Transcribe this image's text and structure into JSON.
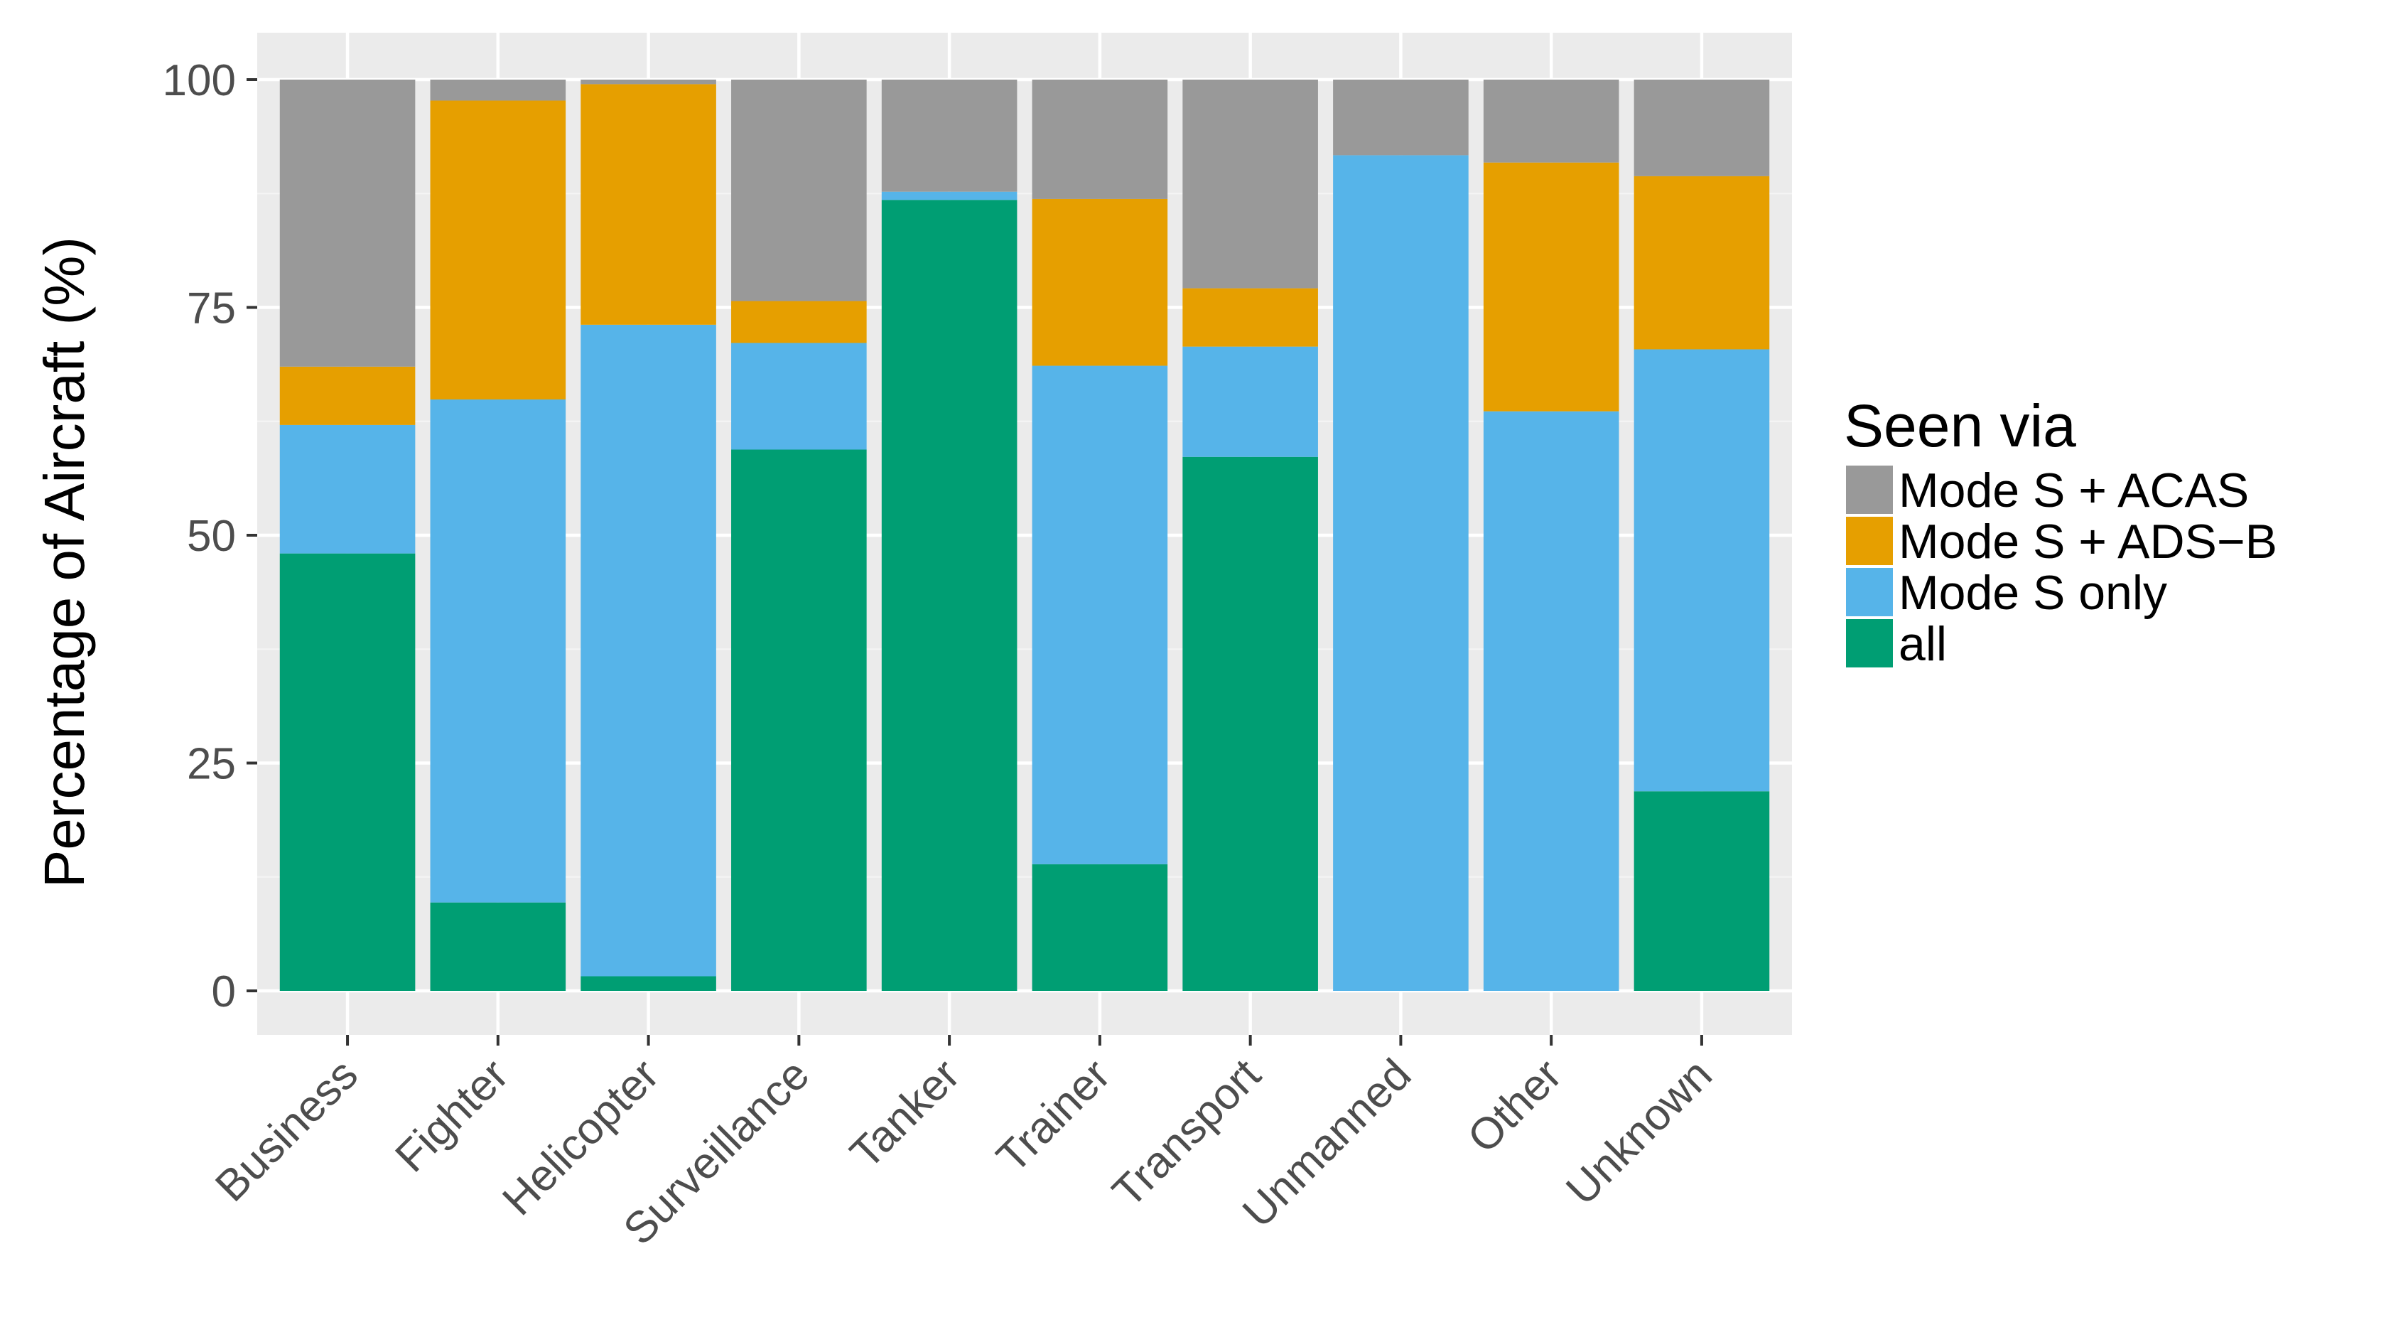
{
  "chart_data": {
    "type": "bar",
    "stacked": true,
    "categories": [
      "Business",
      "Fighter",
      "Helicopter",
      "Surveillance",
      "Tanker",
      "Trainer",
      "Transport",
      "Unmanned",
      "Other",
      "Unknown"
    ],
    "series": [
      {
        "name": "all",
        "color": "#009E73",
        "values": [
          48.0,
          9.7,
          1.6,
          59.4,
          86.8,
          13.9,
          58.6,
          0.0,
          0.0,
          21.9
        ]
      },
      {
        "name": "Mode S only",
        "color": "#56B4E9",
        "values": [
          14.1,
          55.2,
          71.5,
          11.7,
          0.9,
          54.7,
          12.1,
          91.7,
          63.6,
          48.5
        ]
      },
      {
        "name": "Mode S + ADS−B",
        "color": "#E69F00",
        "values": [
          6.4,
          32.8,
          26.4,
          4.6,
          0.0,
          18.3,
          6.4,
          0.0,
          27.3,
          19.0
        ]
      },
      {
        "name": "Mode S + ACAS",
        "color": "#999999",
        "values": [
          31.5,
          2.3,
          0.5,
          24.3,
          12.3,
          13.1,
          22.9,
          8.3,
          9.1,
          10.6
        ]
      }
    ],
    "xlabel": "",
    "ylabel": "Percentage of Aircraft (%)",
    "ylim": [
      0,
      100
    ],
    "yticks": [
      "0",
      "25",
      "50",
      "75",
      "100"
    ],
    "grid": true,
    "legend": {
      "title": "Seen via",
      "position": "right",
      "order": [
        "Mode S + ACAS",
        "Mode S + ADS−B",
        "Mode S only",
        "all"
      ]
    },
    "panel_background": "#EBEBEB",
    "grid_color": "#FFFFFF"
  }
}
